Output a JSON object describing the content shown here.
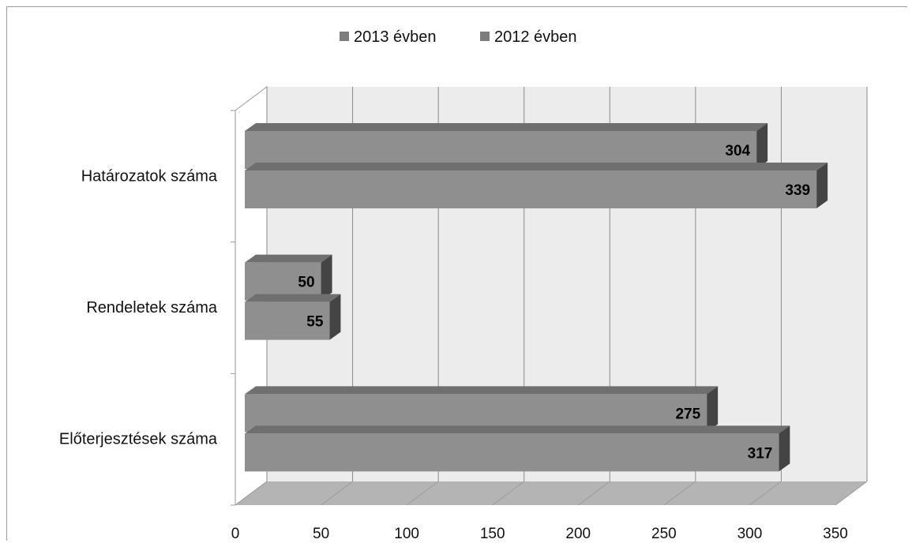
{
  "chart_data": {
    "type": "bar",
    "orientation": "horizontal",
    "three_d": true,
    "categories": [
      "Határozatok száma",
      "Rendeletek száma",
      "Előterjesztések száma"
    ],
    "series": [
      {
        "name": "2013 évben",
        "values": [
          304,
          50,
          275
        ]
      },
      {
        "name": "2012 évben",
        "values": [
          339,
          55,
          317
        ]
      }
    ],
    "xlim": [
      0,
      350
    ],
    "xticks": [
      "0",
      "50",
      "100",
      "150",
      "200",
      "250",
      "300",
      "350"
    ],
    "legend_position": "top",
    "grid": true,
    "data_labels": true
  },
  "colors": {
    "bar_front": "#8f8f8f",
    "bar_top": "#6f6f6f",
    "bar_side": "#444444",
    "plot_back": "#ececec",
    "floor": "#b4b4b4",
    "grid": "#8a8a8a",
    "legend_swatch": "#7d7d7d"
  }
}
